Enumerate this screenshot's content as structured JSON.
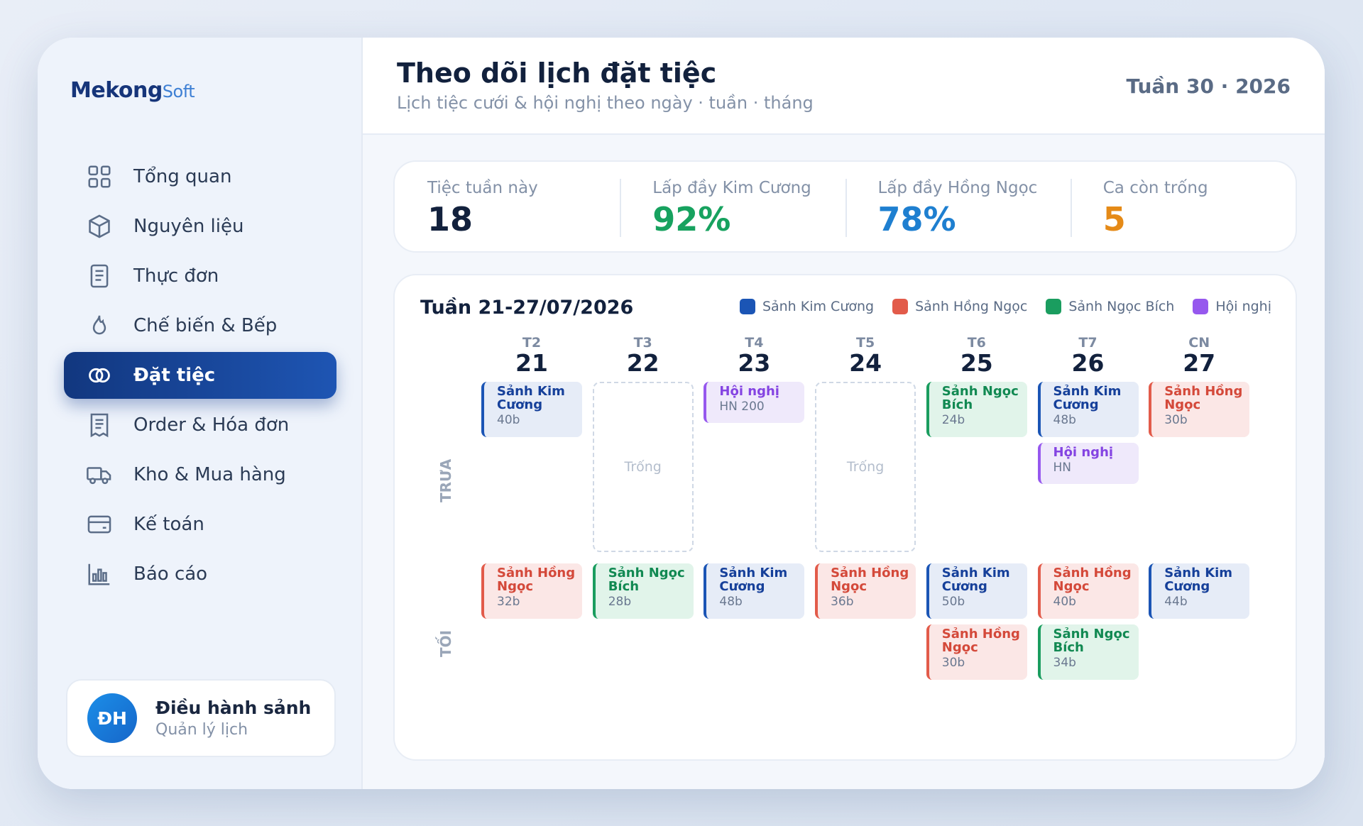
{
  "brand": {
    "logo_main": "Mekong",
    "logo_soft": "Soft"
  },
  "sidebar": {
    "items": [
      {
        "label": "Tổng quan",
        "icon": "grid-icon"
      },
      {
        "label": "Nguyên liệu",
        "icon": "box-icon"
      },
      {
        "label": "Thực đơn",
        "icon": "document-icon"
      },
      {
        "label": "Chế biến & Bếp",
        "icon": "flame-icon"
      },
      {
        "label": "Đặt tiệc",
        "icon": "rings-icon",
        "active": true
      },
      {
        "label": "Order & Hóa đơn",
        "icon": "receipt-icon"
      },
      {
        "label": "Kho & Mua hàng",
        "icon": "truck-icon"
      },
      {
        "label": "Kế toán",
        "icon": "wallet-icon"
      },
      {
        "label": "Báo cáo",
        "icon": "bar-chart-icon"
      }
    ],
    "user": {
      "initials": "ĐH",
      "name": "Điều hành sảnh",
      "role": "Quản lý lịch"
    }
  },
  "header": {
    "title": "Theo dõi lịch đặt tiệc",
    "subtitle": "Lịch tiệc cưới & hội nghị theo ngày · tuần · tháng",
    "week": "Tuần 30 · 2026"
  },
  "stats": [
    {
      "label": "Tiệc tuần này",
      "value": "18",
      "color": "#12213d"
    },
    {
      "label": "Lấp đầy Kim Cương",
      "value": "92%",
      "color": "#17a25f"
    },
    {
      "label": "Lấp đầy Hồng Ngọc",
      "value": "78%",
      "color": "#1e7fd0"
    },
    {
      "label": "Ca còn trống",
      "value": "5",
      "color": "#e58a17"
    }
  ],
  "calendar": {
    "title": "Tuần 21-27/07/2026",
    "legend": [
      {
        "label": "Sảnh Kim Cương",
        "color": "#1b55b5"
      },
      {
        "label": "Sảnh Hồng Ngọc",
        "color": "#e25b4a"
      },
      {
        "label": "Sảnh Ngọc Bích",
        "color": "#1a9d5f"
      },
      {
        "label": "Hội nghị",
        "color": "#9658ee"
      }
    ],
    "days": [
      {
        "dow": "T2",
        "num": "21"
      },
      {
        "dow": "T3",
        "num": "22"
      },
      {
        "dow": "T4",
        "num": "23"
      },
      {
        "dow": "T5",
        "num": "24"
      },
      {
        "dow": "T6",
        "num": "25"
      },
      {
        "dow": "T7",
        "num": "26"
      },
      {
        "dow": "CN",
        "num": "27"
      }
    ],
    "rows": {
      "noon": "TRƯA",
      "evening": "TỐI"
    },
    "empty_label": "Trống",
    "events": {
      "noon": [
        [
          {
            "type": "kc",
            "line1": "Sảnh Kim",
            "line2": "Cương",
            "count": "40b"
          }
        ],
        [],
        [
          {
            "type": "hg",
            "line1": "Hội nghị",
            "line2": "",
            "count": "HN 200"
          }
        ],
        [],
        [
          {
            "type": "nb",
            "line1": "Sảnh Ngọc",
            "line2": "Bích",
            "count": "24b"
          }
        ],
        [
          {
            "type": "kc",
            "line1": "Sảnh Kim",
            "line2": "Cương",
            "count": "48b"
          },
          {
            "type": "hg",
            "line1": "Hội nghị",
            "line2": "",
            "count": "HN"
          }
        ],
        [
          {
            "type": "hn",
            "line1": "Sảnh Hồng",
            "line2": "Ngọc",
            "count": "30b"
          }
        ]
      ],
      "evening": [
        [
          {
            "type": "hn",
            "line1": "Sảnh Hồng",
            "line2": "Ngọc",
            "count": "32b"
          }
        ],
        [
          {
            "type": "nb",
            "line1": "Sảnh Ngọc",
            "line2": "Bích",
            "count": "28b"
          }
        ],
        [
          {
            "type": "kc",
            "line1": "Sảnh Kim",
            "line2": "Cương",
            "count": "48b"
          }
        ],
        [
          {
            "type": "hn",
            "line1": "Sảnh Hồng",
            "line2": "Ngọc",
            "count": "36b"
          }
        ],
        [
          {
            "type": "kc",
            "line1": "Sảnh Kim",
            "line2": "Cương",
            "count": "50b"
          },
          {
            "type": "hn",
            "line1": "Sảnh Hồng",
            "line2": "Ngọc",
            "count": "30b"
          }
        ],
        [
          {
            "type": "hn",
            "line1": "Sảnh Hồng",
            "line2": "Ngọc",
            "count": "40b"
          },
          {
            "type": "nb",
            "line1": "Sảnh Ngọc",
            "line2": "Bích",
            "count": "34b"
          }
        ],
        [
          {
            "type": "kc",
            "line1": "Sảnh Kim",
            "line2": "Cương",
            "count": "44b"
          }
        ]
      ]
    }
  }
}
